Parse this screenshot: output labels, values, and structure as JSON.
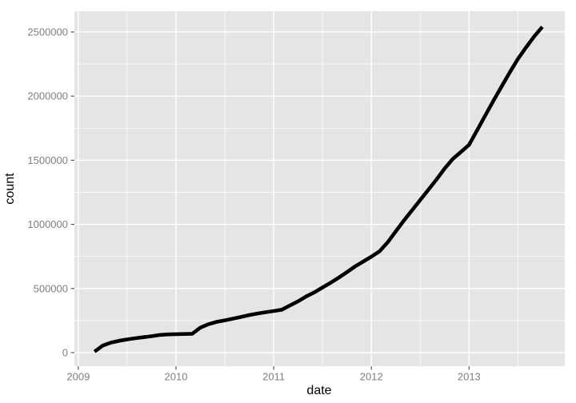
{
  "chart_data": {
    "type": "line",
    "title": "",
    "xlabel": "date",
    "ylabel": "count",
    "grid": true,
    "legend": "none",
    "x_domain": [
      2008.96,
      2013.98
    ],
    "y_domain": [
      -106000,
      2662000
    ],
    "x_major_ticks": [
      {
        "value": 2009,
        "label": "2009"
      },
      {
        "value": 2010,
        "label": "2010"
      },
      {
        "value": 2011,
        "label": "2011"
      },
      {
        "value": 2012,
        "label": "2012"
      },
      {
        "value": 2013,
        "label": "2013"
      }
    ],
    "x_minor_ticks": [
      2009.5,
      2010.5,
      2011.5,
      2012.5,
      2013.5
    ],
    "y_major_ticks": [
      {
        "value": 0,
        "label": "0"
      },
      {
        "value": 500000,
        "label": "500000"
      },
      {
        "value": 1000000,
        "label": "1000000"
      },
      {
        "value": 1500000,
        "label": "1500000"
      },
      {
        "value": 2000000,
        "label": "2000000"
      },
      {
        "value": 2500000,
        "label": "2500000"
      }
    ],
    "y_minor_ticks": [
      250000,
      750000,
      1250000,
      1750000,
      2250000
    ],
    "series": [
      {
        "name": "count",
        "points": [
          {
            "date": "2009-03",
            "count": 8000
          },
          {
            "date": "2009-04",
            "count": 55000
          },
          {
            "date": "2009-05",
            "count": 78000
          },
          {
            "date": "2009-06",
            "count": 92000
          },
          {
            "date": "2009-07",
            "count": 103000
          },
          {
            "date": "2009-08",
            "count": 112000
          },
          {
            "date": "2009-09",
            "count": 120000
          },
          {
            "date": "2009-10",
            "count": 128000
          },
          {
            "date": "2009-11",
            "count": 138000
          },
          {
            "date": "2009-12",
            "count": 142000
          },
          {
            "date": "2010-01",
            "count": 144000
          },
          {
            "date": "2010-02",
            "count": 145000
          },
          {
            "date": "2010-03",
            "count": 147000
          },
          {
            "date": "2010-04",
            "count": 195000
          },
          {
            "date": "2010-05",
            "count": 222000
          },
          {
            "date": "2010-06",
            "count": 240000
          },
          {
            "date": "2010-07",
            "count": 252000
          },
          {
            "date": "2010-08",
            "count": 265000
          },
          {
            "date": "2010-09",
            "count": 278000
          },
          {
            "date": "2010-10",
            "count": 293000
          },
          {
            "date": "2010-11",
            "count": 305000
          },
          {
            "date": "2010-12",
            "count": 315000
          },
          {
            "date": "2011-01",
            "count": 324000
          },
          {
            "date": "2011-02",
            "count": 335000
          },
          {
            "date": "2011-03",
            "count": 368000
          },
          {
            "date": "2011-04",
            "count": 400000
          },
          {
            "date": "2011-05",
            "count": 438000
          },
          {
            "date": "2011-06",
            "count": 470000
          },
          {
            "date": "2011-07",
            "count": 508000
          },
          {
            "date": "2011-08",
            "count": 545000
          },
          {
            "date": "2011-09",
            "count": 585000
          },
          {
            "date": "2011-10",
            "count": 628000
          },
          {
            "date": "2011-11",
            "count": 672000
          },
          {
            "date": "2011-12",
            "count": 710000
          },
          {
            "date": "2012-01",
            "count": 748000
          },
          {
            "date": "2012-02",
            "count": 790000
          },
          {
            "date": "2012-03",
            "count": 860000
          },
          {
            "date": "2012-04",
            "count": 945000
          },
          {
            "date": "2012-05",
            "count": 1030000
          },
          {
            "date": "2012-06",
            "count": 1110000
          },
          {
            "date": "2012-07",
            "count": 1190000
          },
          {
            "date": "2012-08",
            "count": 1270000
          },
          {
            "date": "2012-09",
            "count": 1350000
          },
          {
            "date": "2012-10",
            "count": 1435000
          },
          {
            "date": "2012-11",
            "count": 1510000
          },
          {
            "date": "2012-12",
            "count": 1565000
          },
          {
            "date": "2013-01",
            "count": 1620000
          },
          {
            "date": "2013-02",
            "count": 1735000
          },
          {
            "date": "2013-03",
            "count": 1850000
          },
          {
            "date": "2013-04",
            "count": 1965000
          },
          {
            "date": "2013-05",
            "count": 2075000
          },
          {
            "date": "2013-06",
            "count": 2185000
          },
          {
            "date": "2013-07",
            "count": 2290000
          },
          {
            "date": "2013-08",
            "count": 2380000
          },
          {
            "date": "2013-09",
            "count": 2465000
          },
          {
            "date": "2013-10",
            "count": 2540000
          }
        ]
      }
    ],
    "colors": {
      "panel_background": "#E5E5E5",
      "grid_major": "#FFFFFF",
      "grid_minor": "#FFFFFF",
      "line": "#000000",
      "tick_mark": "#4D4D4D",
      "tick_label": "#7F7F7F",
      "axis_title": "#000000",
      "figure_background": "#FFFFFF"
    }
  }
}
